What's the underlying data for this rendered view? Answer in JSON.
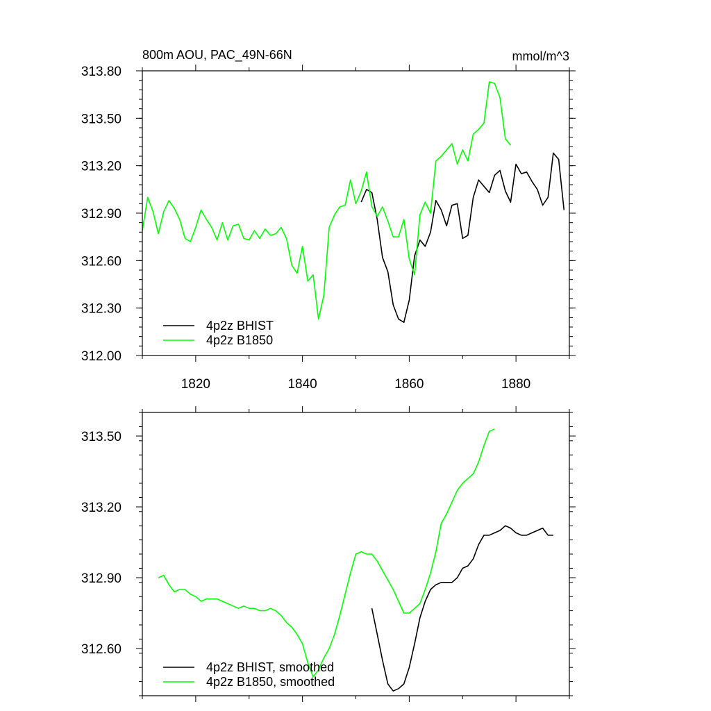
{
  "chart_data": [
    {
      "type": "line",
      "title_left": "800m AOU, PAC_49N-66N",
      "title_right": "mmol/m^3",
      "xlim": [
        1810,
        1890
      ],
      "ylim": [
        312.0,
        313.8
      ],
      "x_ticks": [
        1820,
        1840,
        1860,
        1880
      ],
      "x_minor_ticks": [
        1810,
        1830,
        1850,
        1870,
        1890
      ],
      "y_ticks": [
        312.0,
        312.3,
        312.6,
        312.9,
        313.2,
        313.5,
        313.8
      ],
      "y_tick_labels": [
        "312.00",
        "312.30",
        "312.60",
        "312.90",
        "313.20",
        "313.50",
        "313.80"
      ],
      "y_minor_step": 0.06,
      "legend_position": "bottom-left",
      "series": [
        {
          "name": "4p2z BHIST",
          "color": "#000000",
          "x": [
            1851,
            1852,
            1853,
            1854,
            1855,
            1856,
            1857,
            1858,
            1859,
            1860,
            1861,
            1862,
            1863,
            1864,
            1865,
            1866,
            1867,
            1868,
            1869,
            1870,
            1871,
            1872,
            1873,
            1874,
            1875,
            1876,
            1877,
            1878,
            1879,
            1880,
            1881,
            1882,
            1883,
            1884,
            1885,
            1886,
            1887,
            1888,
            1889
          ],
          "y": [
            312.97,
            313.05,
            313.03,
            312.86,
            312.62,
            312.53,
            312.32,
            312.23,
            312.21,
            312.35,
            312.63,
            312.73,
            312.69,
            312.78,
            312.98,
            312.92,
            312.82,
            312.95,
            312.96,
            312.74,
            312.76,
            313.0,
            313.11,
            313.07,
            313.03,
            313.14,
            313.17,
            313.04,
            312.97,
            313.21,
            313.15,
            313.16,
            313.1,
            313.05,
            312.95,
            313.0,
            313.28,
            313.24,
            312.92
          ]
        },
        {
          "name": "4p2z B1850",
          "color": "#00ff00",
          "x": [
            1810,
            1811,
            1812,
            1813,
            1814,
            1815,
            1816,
            1817,
            1818,
            1819,
            1820,
            1821,
            1822,
            1823,
            1824,
            1825,
            1826,
            1827,
            1828,
            1829,
            1830,
            1831,
            1832,
            1833,
            1834,
            1835,
            1836,
            1837,
            1838,
            1839,
            1840,
            1841,
            1842,
            1843,
            1844,
            1845,
            1846,
            1847,
            1848,
            1849,
            1850,
            1851,
            1852,
            1853,
            1854,
            1855,
            1856,
            1857,
            1858,
            1859,
            1860,
            1861,
            1862,
            1863,
            1864,
            1865,
            1866,
            1867,
            1868,
            1869,
            1870,
            1871,
            1872,
            1873,
            1874,
            1875,
            1876,
            1877,
            1878,
            1879
          ],
          "y": [
            312.79,
            313.0,
            312.91,
            312.77,
            312.91,
            312.98,
            312.93,
            312.86,
            312.74,
            312.72,
            312.81,
            312.92,
            312.86,
            312.81,
            312.73,
            312.84,
            312.73,
            312.82,
            312.83,
            312.74,
            312.73,
            312.79,
            312.74,
            312.8,
            312.76,
            312.77,
            312.81,
            312.74,
            312.57,
            312.52,
            312.69,
            312.47,
            312.51,
            312.23,
            312.38,
            312.81,
            312.89,
            312.94,
            312.95,
            313.11,
            312.96,
            313.04,
            313.16,
            312.94,
            312.88,
            312.94,
            312.85,
            312.75,
            312.75,
            312.86,
            312.61,
            312.51,
            312.89,
            312.97,
            312.9,
            313.23,
            313.26,
            313.3,
            313.34,
            313.21,
            313.3,
            313.23,
            313.4,
            313.43,
            313.47,
            313.73,
            313.72,
            313.63,
            313.37,
            313.33
          ]
        }
      ]
    },
    {
      "type": "line",
      "xlim": [
        1810,
        1890
      ],
      "ylim": [
        312.4,
        313.6
      ],
      "x_ticks": [
        1820,
        1840,
        1860,
        1880
      ],
      "x_minor_ticks": [
        1810,
        1830,
        1850,
        1870,
        1890
      ],
      "y_ticks": [
        312.6,
        312.9,
        313.2,
        313.5
      ],
      "y_tick_labels": [
        "312.60",
        "312.90",
        "313.20",
        "313.50"
      ],
      "y_minor_step": 0.06,
      "legend_position": "bottom-left",
      "series": [
        {
          "name": "4p2z BHIST, smoothed",
          "color": "#000000",
          "x": [
            1853,
            1854,
            1855,
            1856,
            1857,
            1858,
            1859,
            1860,
            1861,
            1862,
            1863,
            1864,
            1865,
            1866,
            1867,
            1868,
            1869,
            1870,
            1871,
            1872,
            1873,
            1874,
            1875,
            1876,
            1877,
            1878,
            1879,
            1880,
            1881,
            1882,
            1883,
            1884,
            1885,
            1886,
            1887
          ],
          "y": [
            312.77,
            312.66,
            312.55,
            312.45,
            312.42,
            312.43,
            312.45,
            312.52,
            312.62,
            312.73,
            312.8,
            312.85,
            312.87,
            312.88,
            312.88,
            312.88,
            312.9,
            312.94,
            312.95,
            312.98,
            313.04,
            313.08,
            313.08,
            313.09,
            313.1,
            313.12,
            313.11,
            313.09,
            313.08,
            313.08,
            313.09,
            313.1,
            313.11,
            313.08,
            313.08
          ]
        },
        {
          "name": "4p2z B1850, smoothed",
          "color": "#00ff00",
          "x": [
            1813,
            1814,
            1815,
            1816,
            1817,
            1818,
            1819,
            1820,
            1821,
            1822,
            1823,
            1824,
            1825,
            1826,
            1827,
            1828,
            1829,
            1830,
            1831,
            1832,
            1833,
            1834,
            1835,
            1836,
            1837,
            1838,
            1839,
            1840,
            1841,
            1842,
            1843,
            1844,
            1845,
            1846,
            1847,
            1848,
            1849,
            1850,
            1851,
            1852,
            1853,
            1854,
            1855,
            1856,
            1857,
            1858,
            1859,
            1860,
            1861,
            1862,
            1863,
            1864,
            1865,
            1866,
            1867,
            1868,
            1869,
            1870,
            1871,
            1872,
            1873,
            1874,
            1875,
            1876
          ],
          "y": [
            312.9,
            312.91,
            312.87,
            312.84,
            312.85,
            312.85,
            312.83,
            312.82,
            312.8,
            312.81,
            312.81,
            312.81,
            312.8,
            312.79,
            312.78,
            312.77,
            312.78,
            312.77,
            312.77,
            312.76,
            312.76,
            312.77,
            312.76,
            312.74,
            312.71,
            312.69,
            312.66,
            312.62,
            312.54,
            312.48,
            312.51,
            312.56,
            312.6,
            312.66,
            312.74,
            312.83,
            312.92,
            313.0,
            313.01,
            313.0,
            313.0,
            312.97,
            312.93,
            312.89,
            312.85,
            312.8,
            312.75,
            312.75,
            312.77,
            312.79,
            312.85,
            312.92,
            313.01,
            313.13,
            313.17,
            313.22,
            313.27,
            313.3,
            313.32,
            313.34,
            313.39,
            313.46,
            313.52,
            313.53
          ]
        }
      ]
    }
  ]
}
